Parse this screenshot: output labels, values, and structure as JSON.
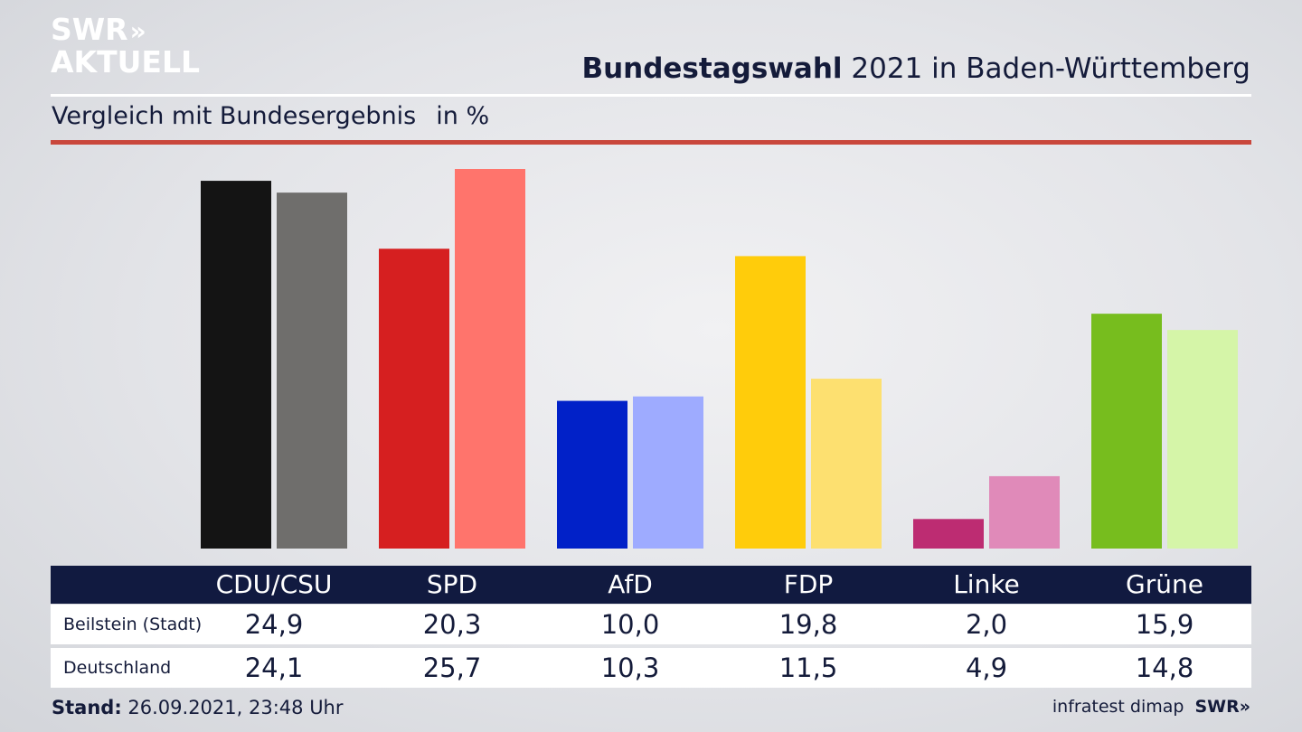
{
  "logo": {
    "line1": "SWR",
    "arrows": "»",
    "line2": "AKTUELL"
  },
  "header": {
    "title_bold": "Bundestagswahl",
    "title_rest": "2021 in Baden-Württemberg",
    "subtitle": "Vergleich mit Bundesergebnis",
    "unit": "in %"
  },
  "colors": {
    "rule_red": "#c9473c",
    "table_header_bg": "#111a40",
    "CDU/CSU": [
      "#141414",
      "#6f6e6c"
    ],
    "SPD": [
      "#d61f20",
      "#ff746c"
    ],
    "AfD": [
      "#0121c8",
      "#9eabff"
    ],
    "FDP": [
      "#ffcc0b",
      "#fde070"
    ],
    "Linke": [
      "#bd2c72",
      "#e08ab9"
    ],
    "Grüne": [
      "#77bd1e",
      "#d5f5a8"
    ]
  },
  "chart_data": {
    "type": "bar",
    "categories": [
      "CDU/CSU",
      "SPD",
      "AfD",
      "FDP",
      "Linke",
      "Grüne"
    ],
    "series": [
      {
        "name": "Beilstein (Stadt)",
        "values": [
          24.9,
          20.3,
          10.0,
          19.8,
          2.0,
          15.9
        ]
      },
      {
        "name": "Deutschland",
        "values": [
          24.1,
          25.7,
          10.3,
          11.5,
          4.9,
          14.8
        ]
      }
    ],
    "ylim": [
      0,
      25.7
    ]
  },
  "table": {
    "headers": [
      "CDU/CSU",
      "SPD",
      "AfD",
      "FDP",
      "Linke",
      "Grüne"
    ],
    "rows": [
      {
        "label": "Beilstein (Stadt)",
        "cells": [
          "24,9",
          "20,3",
          "10,0",
          "19,8",
          "2,0",
          "15,9"
        ]
      },
      {
        "label": "Deutschland",
        "cells": [
          "24,1",
          "25,7",
          "10,3",
          "11,5",
          "4,9",
          "14,8"
        ]
      }
    ]
  },
  "footer": {
    "stand_label": "Stand:",
    "stand_value": "26.09.2021, 23:48 Uhr",
    "source": "infratest dimap",
    "brand": "SWR»"
  }
}
